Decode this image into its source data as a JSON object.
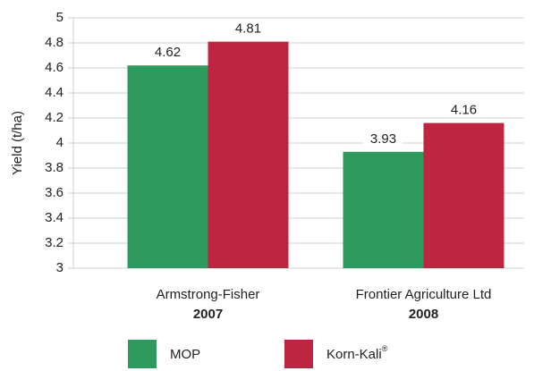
{
  "chart_data": {
    "type": "bar",
    "y_label": "Yield (t/ha)",
    "categories": [
      "Armstrong-Fisher",
      "Frontier Agriculture Ltd"
    ],
    "category_years": [
      "2007",
      "2008"
    ],
    "series": [
      {
        "name": "MOP",
        "color": "#2e9a5e",
        "values": [
          4.62,
          3.93
        ]
      },
      {
        "name": "Korn-Kali",
        "name_superscript": "®",
        "color": "#be2540",
        "values": [
          4.81,
          4.16
        ]
      }
    ],
    "ylim": [
      3,
      5
    ],
    "yticks": [
      3,
      3.2,
      3.4,
      3.6,
      3.8,
      4,
      4.2,
      4.4,
      4.6,
      4.8,
      5
    ],
    "grid": true
  }
}
